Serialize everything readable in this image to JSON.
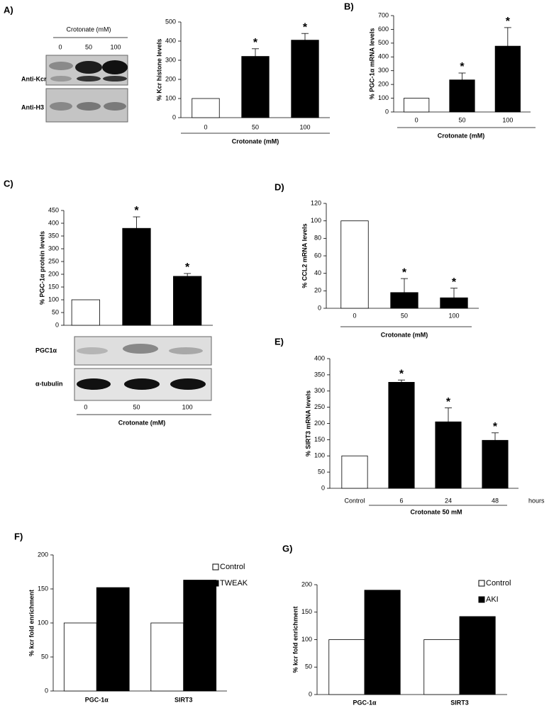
{
  "chart_data": [
    {
      "type": "bar",
      "label": "A)",
      "y_label": "% Kcr histone levels",
      "x_label": "Crotonate (mM)",
      "categories": [
        "0",
        "50",
        "100"
      ],
      "values": [
        100,
        320,
        405
      ],
      "errors": [
        null,
        40,
        35
      ],
      "stars": [
        null,
        "*",
        "*"
      ],
      "colors": [
        "#ffffff",
        "#000000",
        "#000000"
      ],
      "ylim": [
        0,
        500
      ],
      "yticks": [
        0,
        100,
        200,
        300,
        400,
        500
      ]
    },
    {
      "type": "bar",
      "label": "B)",
      "y_label": "% PGC-1α  mRNA levels",
      "x_label": "Crotonate (mM)",
      "categories": [
        "0",
        "50",
        "100"
      ],
      "values": [
        100,
        233,
        478
      ],
      "errors": [
        null,
        50,
        135
      ],
      "stars": [
        null,
        "*",
        "*"
      ],
      "colors": [
        "#ffffff",
        "#000000",
        "#000000"
      ],
      "ylim": [
        0,
        700
      ],
      "yticks": [
        0,
        100,
        200,
        300,
        400,
        500,
        600,
        700
      ]
    },
    {
      "type": "bar",
      "label": "C)",
      "y_label": "% PGC-1α protein levels",
      "x_label": "Crotonate (mM)",
      "categories": [
        "0",
        "50",
        "100"
      ],
      "values": [
        100,
        380,
        192
      ],
      "errors": [
        null,
        45,
        11
      ],
      "stars": [
        null,
        "*",
        "*"
      ],
      "colors": [
        "#ffffff",
        "#000000",
        "#000000"
      ],
      "ylim": [
        0,
        450
      ],
      "yticks": [
        0,
        50,
        100,
        150,
        200,
        250,
        300,
        350,
        400,
        450
      ]
    },
    {
      "type": "bar",
      "label": "D)",
      "y_label": "% CCL2 mRNA levels",
      "x_label": "Crotonate (mM)",
      "categories": [
        "0",
        "50",
        "100"
      ],
      "values": [
        100,
        18,
        12
      ],
      "errors": [
        null,
        16,
        11
      ],
      "stars": [
        null,
        "*",
        "*"
      ],
      "colors": [
        "#ffffff",
        "#000000",
        "#000000"
      ],
      "ylim": [
        0,
        120
      ],
      "yticks": [
        0,
        20,
        40,
        60,
        80,
        100,
        120
      ]
    },
    {
      "type": "bar",
      "label": "E)",
      "y_label": "% SIRT3  mRNA levels",
      "x_label": "Crotonate 50 mM",
      "x_note": "hours",
      "categories": [
        "Control",
        "6",
        "24",
        "48"
      ],
      "values": [
        100,
        327,
        205,
        148
      ],
      "errors": [
        null,
        7,
        43,
        23
      ],
      "stars": [
        null,
        "*",
        "*",
        "*"
      ],
      "colors": [
        "#ffffff",
        "#000000",
        "#000000",
        "#000000"
      ],
      "ylim": [
        0,
        400
      ],
      "yticks": [
        0,
        50,
        100,
        150,
        200,
        250,
        300,
        350,
        400
      ]
    },
    {
      "type": "grouped_bar",
      "label": "F)",
      "y_label": "% kcr fold enrichment",
      "categories": [
        "PGC-1α",
        "SIRT3"
      ],
      "series": [
        {
          "name": "Control",
          "color": "#ffffff",
          "values": [
            100,
            100
          ]
        },
        {
          "name": "TWEAK",
          "color": "#000000",
          "values": [
            152,
            163
          ]
        }
      ],
      "ylim": [
        0,
        200
      ],
      "yticks": [
        0,
        50,
        100,
        150,
        200
      ]
    },
    {
      "type": "grouped_bar",
      "label": "G)",
      "y_label": "% kcr fold enrichment",
      "categories": [
        "PGC-1α",
        "SIRT3"
      ],
      "series": [
        {
          "name": "Control",
          "color": "#ffffff",
          "values": [
            100,
            100
          ]
        },
        {
          "name": "AKI",
          "color": "#000000",
          "values": [
            190,
            142
          ]
        }
      ],
      "ylim": [
        0,
        200
      ],
      "yticks": [
        0,
        50,
        100,
        150,
        200
      ]
    }
  ],
  "blots": [
    {
      "header": "Crotonate (mM)",
      "lanes": [
        "0",
        "50",
        "100"
      ],
      "rows": [
        "Anti-Kcr",
        "Anti-H3"
      ]
    },
    {
      "rows": [
        "PGC1α",
        "α-tubulin"
      ]
    }
  ]
}
